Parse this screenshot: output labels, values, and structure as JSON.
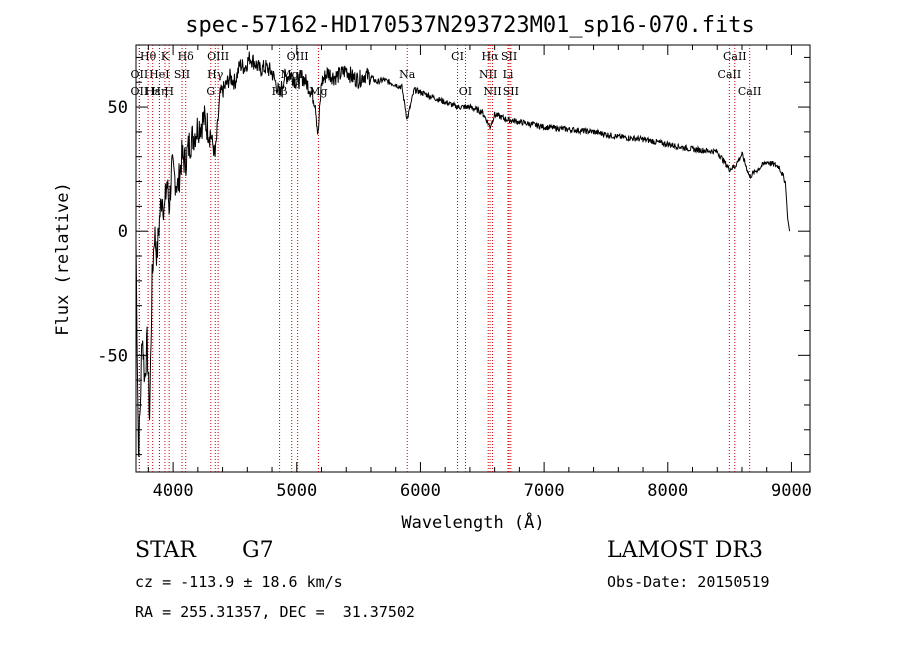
{
  "chart_data": {
    "type": "line",
    "title": "spec-57162-HD170537N293723M01_sp16-070.fits",
    "xlabel": "Wavelength (Å)",
    "ylabel": "Flux (relative)",
    "xlim": [
      3700,
      9150
    ],
    "ylim": [
      -97,
      75
    ],
    "xticks": [
      4000,
      5000,
      6000,
      7000,
      8000,
      9000
    ],
    "yticks": [
      -50,
      0,
      50
    ],
    "series": [
      {
        "name": "spectrum",
        "x": [
          3700,
          3720,
          3735,
          3750,
          3770,
          3790,
          3810,
          3830,
          3850,
          3870,
          3890,
          3910,
          3930,
          3950,
          3968,
          3990,
          4010,
          4040,
          4070,
          4100,
          4130,
          4160,
          4200,
          4250,
          4300,
          4340,
          4380,
          4420,
          4460,
          4500,
          4540,
          4580,
          4620,
          4660,
          4700,
          4750,
          4800,
          4861,
          4900,
          4950,
          5000,
          5050,
          5100,
          5150,
          5172,
          5200,
          5250,
          5300,
          5350,
          5400,
          5450,
          5500,
          5550,
          5600,
          5650,
          5700,
          5750,
          5800,
          5850,
          5893,
          5950,
          6000,
          6100,
          6200,
          6300,
          6400,
          6500,
          6563,
          6600,
          6700,
          6800,
          7000,
          7200,
          7400,
          7600,
          7800,
          8000,
          8200,
          8400,
          8498,
          8542,
          8600,
          8662,
          8800,
          8900,
          8950,
          8970,
          8985
        ],
        "y": [
          -5,
          -90,
          -70,
          -40,
          -60,
          -45,
          -75,
          -20,
          0,
          -10,
          5,
          15,
          8,
          20,
          10,
          25,
          22,
          18,
          30,
          28,
          35,
          38,
          42,
          45,
          40,
          30,
          55,
          58,
          62,
          60,
          67,
          66,
          70,
          68,
          65,
          66,
          64,
          55,
          62,
          63,
          60,
          62,
          58,
          52,
          38,
          60,
          64,
          62,
          63,
          65,
          62,
          61,
          63,
          62,
          60,
          61,
          60,
          59,
          58,
          45,
          57,
          56,
          54,
          52,
          50,
          50,
          48,
          42,
          47,
          45,
          44,
          42,
          41,
          40,
          38,
          37,
          35,
          33,
          32,
          25,
          26,
          31,
          22,
          28,
          26,
          20,
          5,
          0
        ]
      }
    ],
    "lines": [
      {
        "label": "Hθ",
        "x": 3798,
        "row": 0
      },
      {
        "label": "K",
        "x": 3934,
        "row": 0
      },
      {
        "label": "Hδ",
        "x": 4102,
        "row": 0
      },
      {
        "label": "OIII",
        "x": 4364,
        "row": 0
      },
      {
        "label": "OIII",
        "x": 5007,
        "row": 0
      },
      {
        "label": "CI",
        "x": 6300,
        "row": 0
      },
      {
        "label": "Hα",
        "x": 6563,
        "row": 0
      },
      {
        "label": "SII",
        "x": 6717,
        "row": 0
      },
      {
        "label": "CaII",
        "x": 8542,
        "row": 0
      },
      {
        "label": "OII",
        "x": 3727,
        "row": 1
      },
      {
        "label": "HeI",
        "x": 3889,
        "row": 1
      },
      {
        "label": "SII",
        "x": 4072,
        "row": 1
      },
      {
        "label": "Hγ",
        "x": 4341,
        "row": 1
      },
      {
        "label": "MgI",
        "x": 4959,
        "row": 1
      },
      {
        "label": "Na",
        "x": 5893,
        "row": 1
      },
      {
        "label": "NII",
        "x": 6548,
        "row": 1
      },
      {
        "label": "Li",
        "x": 6708,
        "row": 1
      },
      {
        "label": "CaII",
        "x": 8498,
        "row": 1
      },
      {
        "label": "OII",
        "x": 3727,
        "row": 2
      },
      {
        "label": "Hε",
        "x": 3835,
        "row": 2
      },
      {
        "label": "Hη",
        "x": 3890,
        "row": 2
      },
      {
        "label": "H",
        "x": 3968,
        "row": 2
      },
      {
        "label": "G",
        "x": 4305,
        "row": 2
      },
      {
        "label": "Hβ",
        "x": 4861,
        "row": 2
      },
      {
        "label": "Mg",
        "x": 5175,
        "row": 2
      },
      {
        "label": "OI",
        "x": 6364,
        "row": 2
      },
      {
        "label": "NII",
        "x": 6583,
        "row": 2
      },
      {
        "label": "SII",
        "x": 6731,
        "row": 2
      },
      {
        "label": "CaII",
        "x": 8662,
        "row": 2
      }
    ]
  },
  "info": {
    "object_type": "STAR",
    "subclass": "G7",
    "survey": "LAMOST DR3",
    "cz": "cz = -113.9 ± 18.6 km/s",
    "obs_date": "Obs-Date: 20150519",
    "coords": "RA = 255.31357, DEC =  31.37502"
  },
  "colors": {
    "axis": "#000000",
    "spectrum": "#000000",
    "line_marker": "#cc0000"
  }
}
